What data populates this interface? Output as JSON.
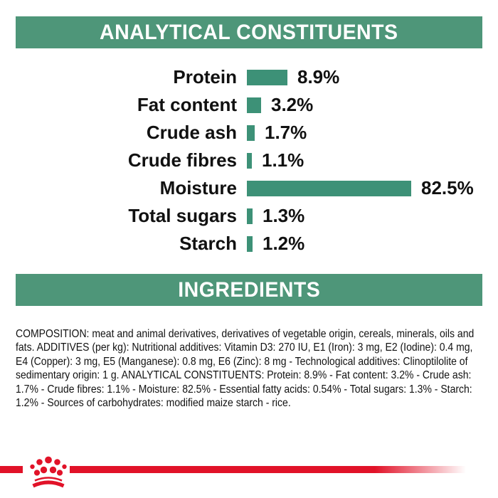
{
  "sections": {
    "analytical_header": "ANALYTICAL CONSTITUENTS",
    "ingredients_header": "INGREDIENTS"
  },
  "chart_data": {
    "type": "bar",
    "orientation": "horizontal",
    "title": "ANALYTICAL CONSTITUENTS",
    "categories": [
      "Protein",
      "Fat content",
      "Crude ash",
      "Crude fibres",
      "Moisture",
      "Total sugars",
      "Starch"
    ],
    "values": [
      8.9,
      3.2,
      1.7,
      1.1,
      82.5,
      1.3,
      1.2
    ],
    "value_labels": [
      "8.9%",
      "3.2%",
      "1.7%",
      "1.1%",
      "82.5%",
      "1.3%",
      "1.2%"
    ],
    "unit": "%",
    "axis_labels": "none",
    "grid": false,
    "legend": "none",
    "layout_hint": "labels right-aligned at left, bars grow rightward, value printed after each bar; longest bar (Moisture 82.5%) visually capped"
  },
  "ingredients": {
    "composition_text": "COMPOSITION: meat and animal derivatives, derivatives of vegetable origin, cereals, minerals, oils and fats. ADDITIVES (per kg): Nutritional additives: Vitamin D3: 270 IU, E1 (Iron): 3 mg, E2 (Iodine): 0.4 mg, E4 (Copper): 3 mg, E5 (Manganese): 0.8 mg, E6 (Zinc): 8 mg - Technological additives: Clinoptilolite of sedimentary origin: 1 g. ANALYTICAL CONSTITUENTS: Protein: 8.9% - Fat content: 3.2% - Crude ash: 1.7% - Crude fibres: 1.1% - Moisture: 82.5% - Essential fatty acids: 0.54% - Total sugars: 1.3% - Starch: 1.2% - Sources of carbohydrates: modified maize starch - rice."
  },
  "branding": {
    "logo": "royal-canin-crown"
  },
  "colors": {
    "banner_teal": "#4E9679",
    "bar_teal": "#3D9177",
    "brand_red": "#E11228",
    "text_black": "#111111"
  }
}
